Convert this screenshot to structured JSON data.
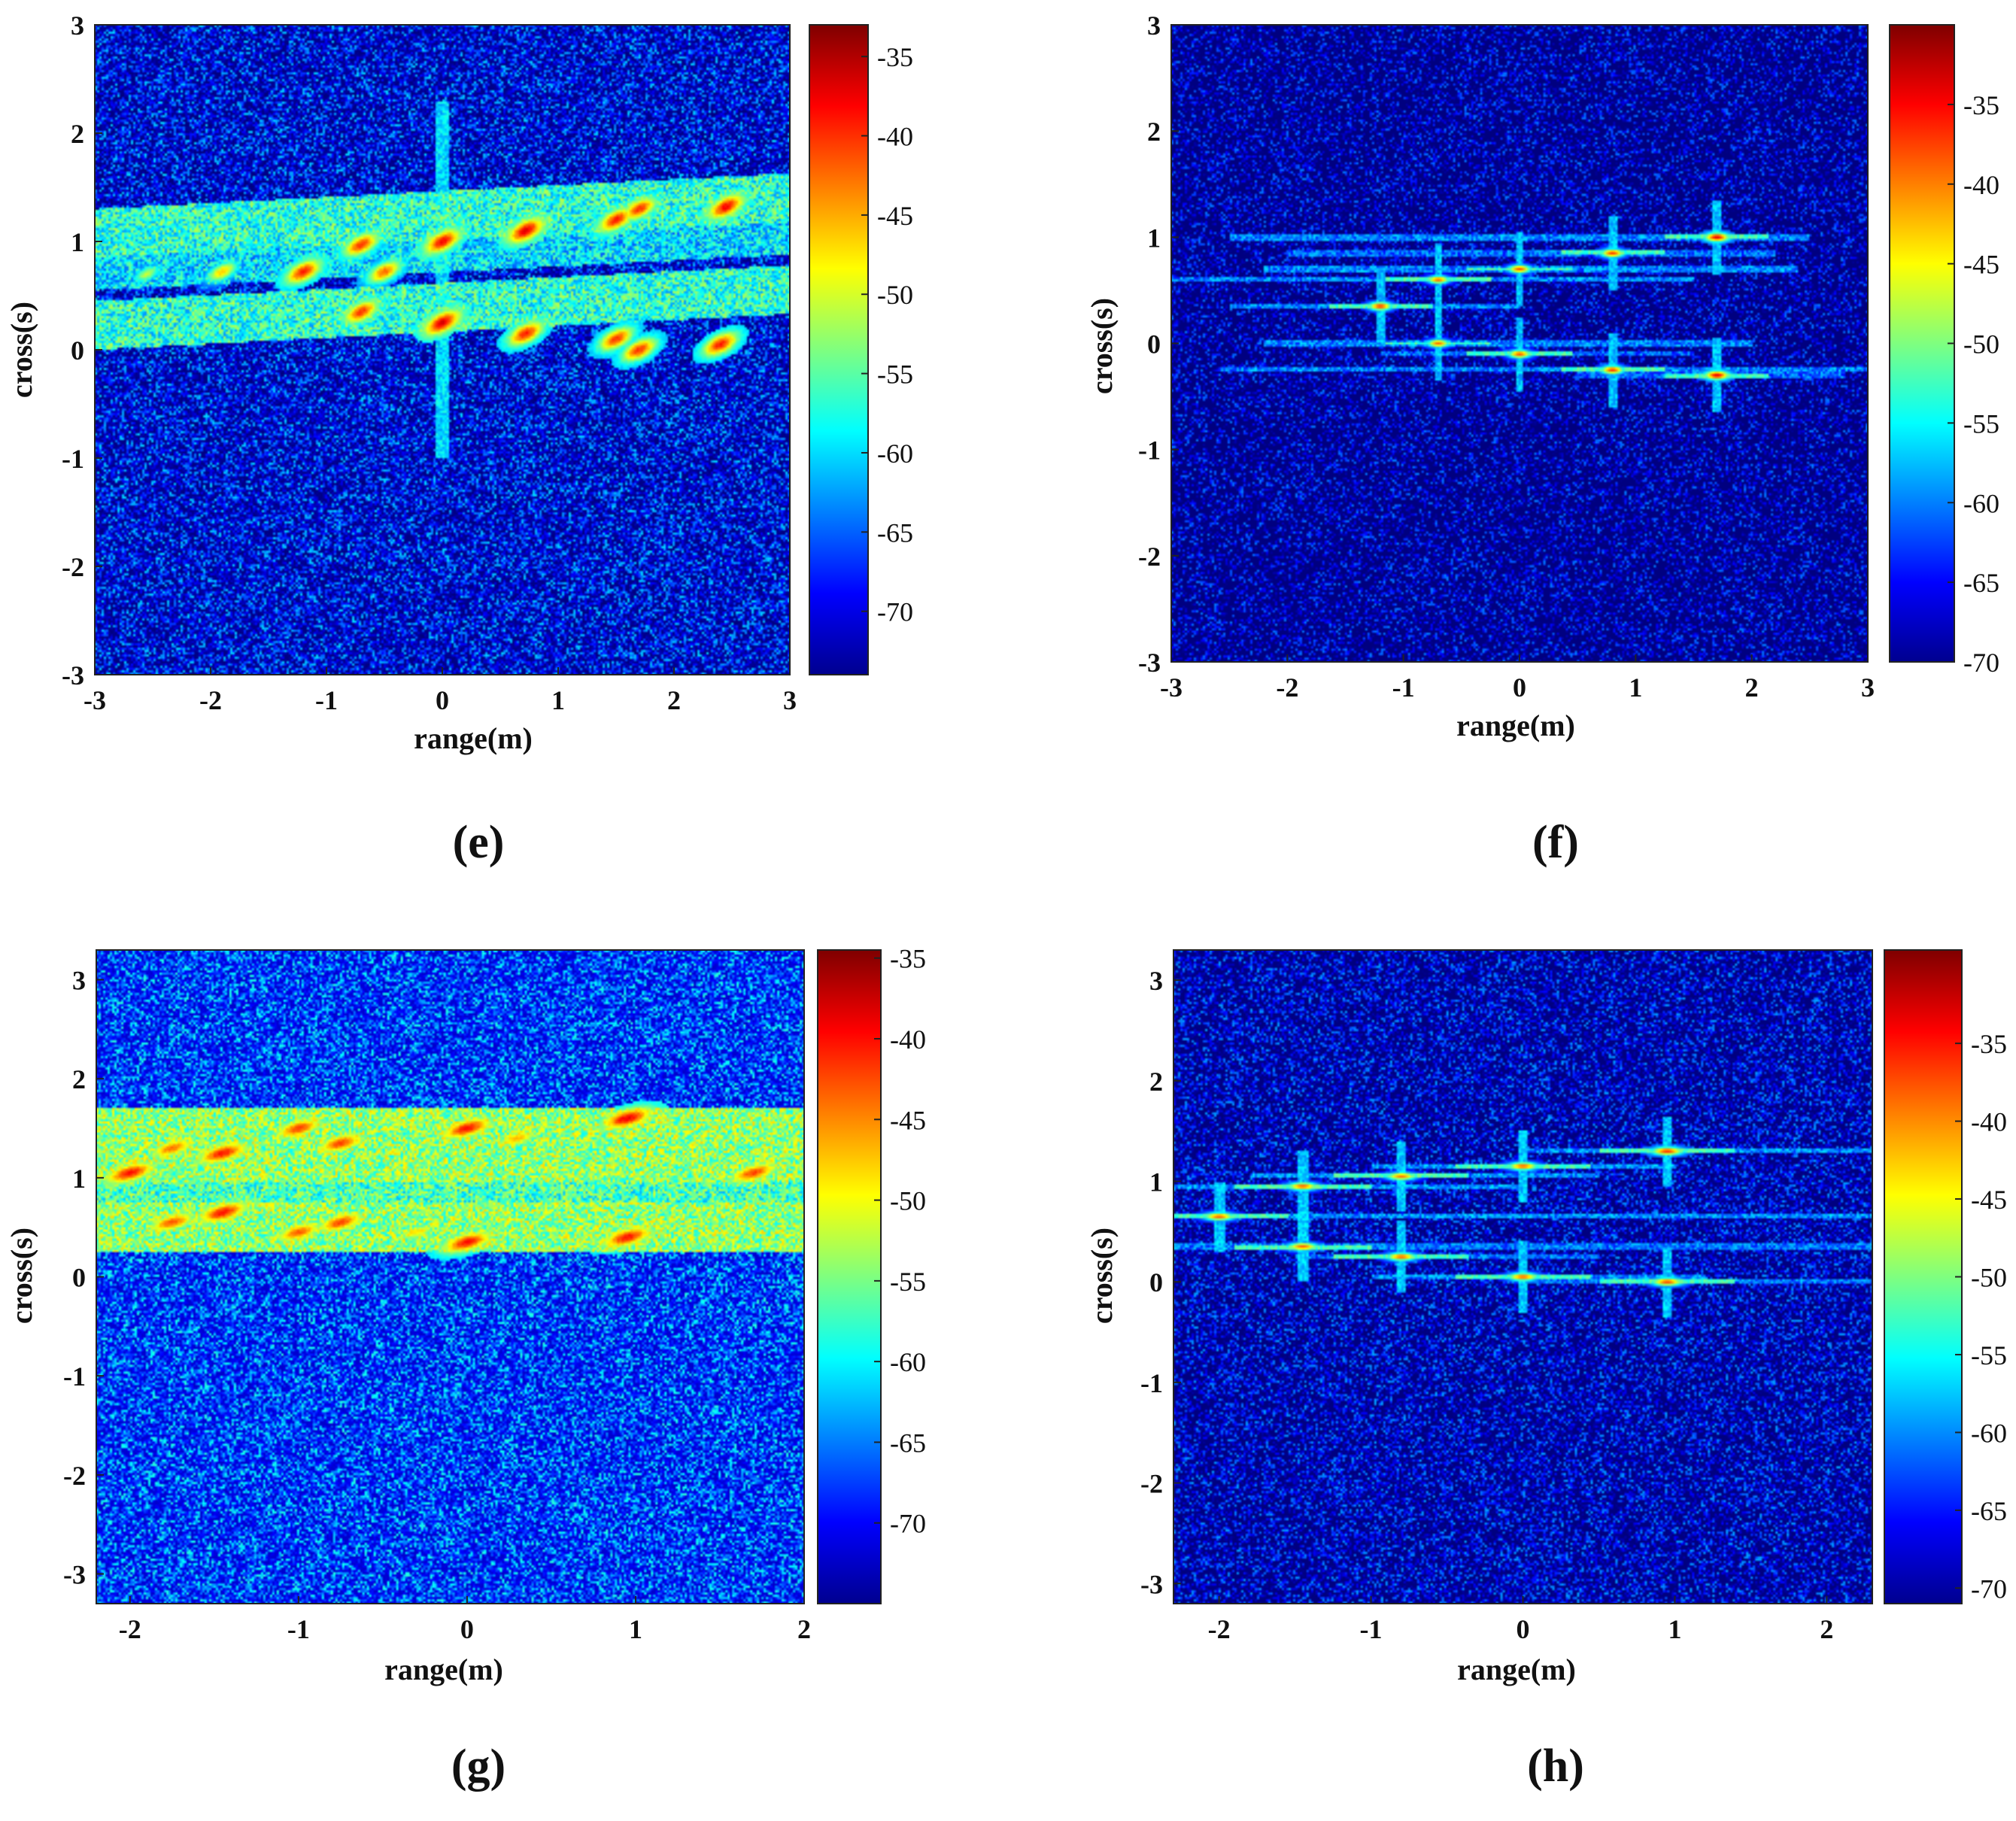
{
  "colors": {
    "colormap": "jet",
    "background": "#ffffff",
    "ink": "#111111"
  },
  "chart_data": [
    {
      "id": "e",
      "type": "heatmap",
      "panel_label": "(e)",
      "xlabel": "range(m)",
      "ylabel": "cross(s)",
      "xlim": [
        -3,
        3
      ],
      "ylim": [
        -3,
        3
      ],
      "xticks": [
        "-3",
        "-2",
        "-1",
        "0",
        "1",
        "2",
        "3"
      ],
      "yticks": [
        "-3",
        "-2",
        "-1",
        "0",
        "1",
        "2",
        "3"
      ],
      "colorbar": {
        "range": [
          -74,
          -33
        ],
        "ticks": [
          "-35",
          "-40",
          "-45",
          "-50",
          "-55",
          "-60",
          "-65",
          "-70"
        ]
      },
      "noise_floor_db": -68,
      "bands": [
        {
          "y_range": [
            0.85,
            1.3
          ],
          "level_db": -58
        },
        {
          "y_range": [
            0.0,
            0.45
          ],
          "level_db": -58
        },
        {
          "y_range": [
            0.55,
            0.85
          ],
          "level_db": -61
        }
      ],
      "streak_x": [
        0.0
      ],
      "tilt": true,
      "hotspots": [
        {
          "x": -2.55,
          "y": 0.7,
          "db": -52
        },
        {
          "x": -1.9,
          "y": 0.72,
          "db": -47
        },
        {
          "x": -1.2,
          "y": 0.72,
          "db": -40
        },
        {
          "x": -0.7,
          "y": 0.97,
          "db": -41
        },
        {
          "x": -0.5,
          "y": 0.72,
          "db": -43
        },
        {
          "x": 0.0,
          "y": 1.0,
          "db": -39
        },
        {
          "x": 0.72,
          "y": 1.1,
          "db": -38
        },
        {
          "x": 1.5,
          "y": 1.2,
          "db": -40
        },
        {
          "x": 1.7,
          "y": 1.3,
          "db": -41
        },
        {
          "x": 2.45,
          "y": 1.32,
          "db": -39
        },
        {
          "x": -0.7,
          "y": 0.35,
          "db": -41
        },
        {
          "x": 0.0,
          "y": 0.25,
          "db": -38
        },
        {
          "x": 0.72,
          "y": 0.15,
          "db": -40
        },
        {
          "x": 1.5,
          "y": 0.1,
          "db": -41
        },
        {
          "x": 1.7,
          "y": 0.0,
          "db": -41
        },
        {
          "x": 2.4,
          "y": 0.05,
          "db": -40
        },
        {
          "x": -2.1,
          "y": 0.35,
          "db": -55
        },
        {
          "x": -1.4,
          "y": 0.32,
          "db": -56
        }
      ]
    },
    {
      "id": "f",
      "type": "heatmap",
      "panel_label": "(f)",
      "xlabel": "range(m)",
      "ylabel": "cross(s)",
      "xlim": [
        -3,
        3
      ],
      "ylim": [
        -3,
        3
      ],
      "xticks": [
        "-3",
        "-2",
        "-1",
        "0",
        "1",
        "2",
        "3"
      ],
      "yticks": [
        "-3",
        "-2",
        "-1",
        "0",
        "1",
        "2",
        "3"
      ],
      "colorbar": {
        "range": [
          -70,
          -30
        ],
        "ticks": [
          "-35",
          "-40",
          "-45",
          "-50",
          "-55",
          "-60",
          "-65",
          "-70"
        ]
      },
      "noise_floor_db": -68,
      "lines": [
        {
          "y": 1.0,
          "x_range": [
            -2.5,
            2.5
          ],
          "db": -60
        },
        {
          "y": 0.85,
          "x_range": [
            -2.0,
            2.2
          ],
          "db": -61
        },
        {
          "y": 0.7,
          "x_range": [
            -2.2,
            2.4
          ],
          "db": -60
        },
        {
          "y": 0.6,
          "x_range": [
            -3.0,
            1.5
          ],
          "db": -60
        },
        {
          "y": 0.35,
          "x_range": [
            -2.5,
            0.0
          ],
          "db": -60
        },
        {
          "y": 0.0,
          "x_range": [
            -2.2,
            2.0
          ],
          "db": -60
        },
        {
          "y": -0.1,
          "x_range": [
            -1.2,
            1.5
          ],
          "db": -61
        },
        {
          "y": -0.25,
          "x_range": [
            -2.6,
            3.0
          ],
          "db": -60
        },
        {
          "y": -0.3,
          "x_range": [
            0.5,
            2.8
          ],
          "db": -61
        }
      ],
      "points": [
        {
          "x": 1.7,
          "y": 1.0,
          "db": -34
        },
        {
          "x": 0.8,
          "y": 0.85,
          "db": -37
        },
        {
          "x": 0.0,
          "y": 0.7,
          "db": -38
        },
        {
          "x": -0.7,
          "y": 0.6,
          "db": -39
        },
        {
          "x": -1.2,
          "y": 0.35,
          "db": -37
        },
        {
          "x": -0.7,
          "y": 0.0,
          "db": -39
        },
        {
          "x": 0.0,
          "y": -0.1,
          "db": -38
        },
        {
          "x": 0.8,
          "y": -0.25,
          "db": -37
        },
        {
          "x": 1.7,
          "y": -0.3,
          "db": -34
        }
      ]
    },
    {
      "id": "g",
      "type": "heatmap",
      "panel_label": "(g)",
      "xlabel": "range(m)",
      "ylabel": "cross(s)",
      "xlim": [
        -2.2,
        2.0
      ],
      "ylim": [
        -3.3,
        3.3
      ],
      "xticks": [
        "-2",
        "-1",
        "0",
        "1",
        "2"
      ],
      "yticks": [
        "-3",
        "-2",
        "-1",
        "0",
        "1",
        "2",
        "3"
      ],
      "colorbar": {
        "range": [
          -75,
          -34.5
        ],
        "ticks": [
          "-35",
          "-40",
          "-45",
          "-50",
          "-55",
          "-60",
          "-65",
          "-70"
        ]
      },
      "noise_floor_db": -66,
      "bands": [
        {
          "y_range": [
            0.95,
            1.7
          ],
          "level_db": -55
        },
        {
          "y_range": [
            0.25,
            0.75
          ],
          "level_db": -55
        },
        {
          "y_range": [
            0.75,
            0.95
          ],
          "level_db": -58
        }
      ],
      "streak_x": [],
      "tilt": false,
      "hotspots": [
        {
          "x": -2.0,
          "y": 1.05,
          "db": -41
        },
        {
          "x": -1.75,
          "y": 1.3,
          "db": -45
        },
        {
          "x": -1.45,
          "y": 1.25,
          "db": -41
        },
        {
          "x": -1.0,
          "y": 1.5,
          "db": -43
        },
        {
          "x": -0.75,
          "y": 1.35,
          "db": -43
        },
        {
          "x": 0.0,
          "y": 1.5,
          "db": -41
        },
        {
          "x": 0.95,
          "y": 1.6,
          "db": -40
        },
        {
          "x": 1.7,
          "y": 1.05,
          "db": -43
        },
        {
          "x": -1.75,
          "y": 0.55,
          "db": -44
        },
        {
          "x": -1.45,
          "y": 0.65,
          "db": -41
        },
        {
          "x": -1.0,
          "y": 0.45,
          "db": -44
        },
        {
          "x": -0.75,
          "y": 0.55,
          "db": -43
        },
        {
          "x": 0.0,
          "y": 0.35,
          "db": -41
        },
        {
          "x": 0.95,
          "y": 0.4,
          "db": -41
        },
        {
          "x": 0.3,
          "y": 1.4,
          "db": -48
        },
        {
          "x": -0.3,
          "y": 0.45,
          "db": -50
        }
      ]
    },
    {
      "id": "h",
      "type": "heatmap",
      "panel_label": "(h)",
      "xlabel": "range(m)",
      "ylabel": "cross(s)",
      "xlim": [
        -2.3,
        2.3
      ],
      "ylim": [
        -3.2,
        3.3
      ],
      "xticks": [
        "-2",
        "-1",
        "0",
        "1",
        "2"
      ],
      "yticks": [
        "-3",
        "-2",
        "-1",
        "0",
        "1",
        "2",
        "3"
      ],
      "colorbar": {
        "range": [
          -71,
          -29
        ],
        "ticks": [
          "-35",
          "-40",
          "-45",
          "-50",
          "-55",
          "-60",
          "-65",
          "-70"
        ]
      },
      "noise_floor_db": -67,
      "lines": [
        {
          "y": 1.3,
          "x_range": [
            0.0,
            2.3
          ],
          "db": -60
        },
        {
          "y": 1.15,
          "x_range": [
            -1.0,
            1.0
          ],
          "db": -60
        },
        {
          "y": 1.05,
          "x_range": [
            -1.8,
            0.5
          ],
          "db": -60
        },
        {
          "y": 0.95,
          "x_range": [
            -2.3,
            0.0
          ],
          "db": -60
        },
        {
          "y": 0.65,
          "x_range": [
            -2.3,
            2.3
          ],
          "db": -60
        },
        {
          "y": 0.35,
          "x_range": [
            -2.3,
            2.3
          ],
          "db": -61
        },
        {
          "y": 0.25,
          "x_range": [
            -1.5,
            0.5
          ],
          "db": -61
        },
        {
          "y": 0.05,
          "x_range": [
            -1.0,
            1.2
          ],
          "db": -60
        },
        {
          "y": 0.0,
          "x_range": [
            0.0,
            2.3
          ],
          "db": -61
        }
      ],
      "points": [
        {
          "x": 0.95,
          "y": 1.3,
          "db": -36
        },
        {
          "x": 0.0,
          "y": 1.15,
          "db": -38
        },
        {
          "x": -0.8,
          "y": 1.05,
          "db": -39
        },
        {
          "x": -1.45,
          "y": 0.95,
          "db": -38
        },
        {
          "x": -2.0,
          "y": 0.65,
          "db": -38
        },
        {
          "x": -1.45,
          "y": 0.35,
          "db": -38
        },
        {
          "x": -0.8,
          "y": 0.25,
          "db": -38
        },
        {
          "x": 0.0,
          "y": 0.05,
          "db": -38
        },
        {
          "x": 0.95,
          "y": 0.0,
          "db": -37
        }
      ]
    }
  ]
}
